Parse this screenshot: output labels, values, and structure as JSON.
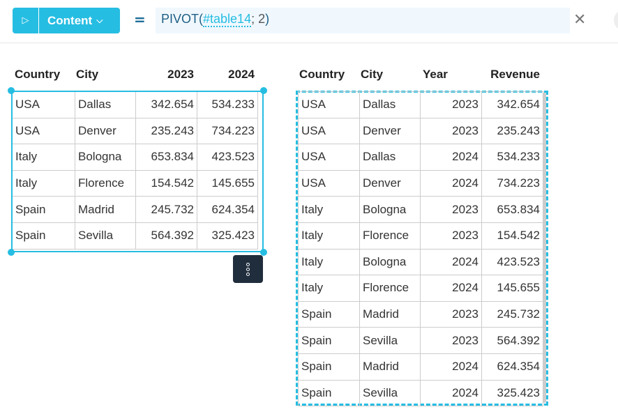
{
  "toolbar": {
    "run_icon": "play-icon",
    "mode_label": "Content",
    "mode_icon": "chevron-down-icon",
    "equals": "=",
    "formula_func": "PIVOT(",
    "formula_ref": "#table14",
    "formula_rest": "; 2",
    "formula_close": ")",
    "close_icon": "close-icon"
  },
  "left_table": {
    "headers": [
      "Country",
      "City",
      "2023",
      "2024"
    ],
    "rows": [
      [
        "USA",
        "Dallas",
        "342.654",
        "534.233"
      ],
      [
        "USA",
        "Denver",
        "235.243",
        "734.223"
      ],
      [
        "Italy",
        "Bologna",
        "653.834",
        "423.523"
      ],
      [
        "Italy",
        "Florence",
        "154.542",
        "145.655"
      ],
      [
        "Spain",
        "Madrid",
        "245.732",
        "624.354"
      ],
      [
        "Spain",
        "Sevilla",
        "564.392",
        "325.423"
      ]
    ],
    "menu_icon": "more-vertical-icon"
  },
  "right_table": {
    "headers": [
      "Country",
      "City",
      "Year",
      "Revenue"
    ],
    "rows": [
      [
        "USA",
        "Dallas",
        "2023",
        "342.654"
      ],
      [
        "USA",
        "Denver",
        "2023",
        "235.243"
      ],
      [
        "USA",
        "Dallas",
        "2024",
        "534.233"
      ],
      [
        "USA",
        "Denver",
        "2024",
        "734.223"
      ],
      [
        "Italy",
        "Bologna",
        "2023",
        "653.834"
      ],
      [
        "Italy",
        "Florence",
        "2023",
        "154.542"
      ],
      [
        "Italy",
        "Bologna",
        "2024",
        "423.523"
      ],
      [
        "Italy",
        "Florence",
        "2024",
        "145.655"
      ],
      [
        "Spain",
        "Madrid",
        "2023",
        "245.732"
      ],
      [
        "Spain",
        "Sevilla",
        "2023",
        "564.392"
      ],
      [
        "Spain",
        "Madrid",
        "2024",
        "624.354"
      ],
      [
        "Spain",
        "Sevilla",
        "2024",
        "325.423"
      ]
    ]
  },
  "colors": {
    "accent": "#26bde2",
    "formula_bg": "#f0f8fe",
    "menu_bg": "#1f2d3d"
  }
}
